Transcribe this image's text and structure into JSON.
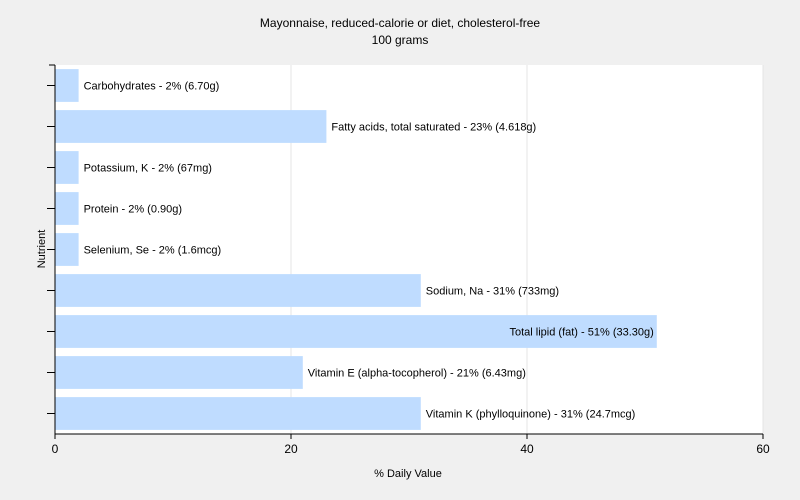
{
  "chart_data": {
    "type": "bar",
    "orientation": "horizontal",
    "title": "Mayonnaise, reduced-calorie or diet, cholesterol-free",
    "subtitle": "100 grams",
    "xlabel": "% Daily Value",
    "ylabel": "Nutrient",
    "xlim": [
      0,
      60
    ],
    "xticks": [
      0,
      20,
      40,
      60
    ],
    "grid": true,
    "bar_color": "#bfdcff",
    "categories": [
      "Carbohydrates",
      "Fatty acids, total saturated",
      "Potassium, K",
      "Protein",
      "Selenium, Se",
      "Sodium, Na",
      "Total lipid (fat)",
      "Vitamin E (alpha-tocopherol)",
      "Vitamin K (phylloquinone)"
    ],
    "values": [
      2,
      23,
      2,
      2,
      2,
      31,
      51,
      21,
      31
    ],
    "labels": [
      "Carbohydrates - 2% (6.70g)",
      "Fatty acids, total saturated - 23% (4.618g)",
      "Potassium, K - 2% (67mg)",
      "Protein - 2% (0.90g)",
      "Selenium, Se - 2% (1.6mcg)",
      "Sodium, Na - 31% (733mg)",
      "Total lipid (fat) - 51% (33.30g)",
      "Vitamin E (alpha-tocopherol) - 21% (6.43mg)",
      "Vitamin K (phylloquinone) - 31% (24.7mcg)"
    ]
  }
}
